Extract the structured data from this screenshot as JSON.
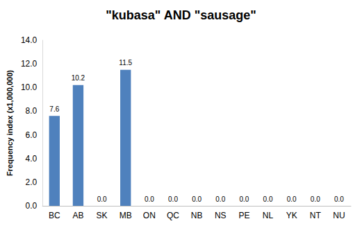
{
  "chart_data": {
    "type": "bar",
    "title": "\"kubasa\" AND \"sausage\"",
    "y_label": "Frequency index (x1,000,000)",
    "categories": [
      "BC",
      "AB",
      "SK",
      "MB",
      "ON",
      "QC",
      "NB",
      "NS",
      "PE",
      "NL",
      "YK",
      "NT",
      "NU"
    ],
    "values": [
      7.6,
      10.2,
      0,
      11.5,
      0,
      0,
      0,
      0,
      0,
      0,
      0,
      0,
      0
    ],
    "value_labels": [
      "7.6",
      "10.2",
      "0.0",
      "11.5",
      "0.0",
      "0.0",
      "0.0",
      "0.0",
      "0.0",
      "0.0",
      "0.0",
      "0.0",
      "0.0"
    ],
    "color": "#4f81bd",
    "ylim": [
      0,
      14
    ],
    "yticks": [
      {
        "value": 0,
        "label": "0.0"
      },
      {
        "value": 2,
        "label": "2.0"
      },
      {
        "value": 4,
        "label": "4.0"
      },
      {
        "value": 6,
        "label": "6.0"
      },
      {
        "value": 8,
        "label": "8.0"
      },
      {
        "value": 10,
        "label": "10.0"
      },
      {
        "value": 12,
        "label": "12.0"
      },
      {
        "value": 14,
        "label": "14.0"
      }
    ],
    "grid": false,
    "data_labels": true
  }
}
